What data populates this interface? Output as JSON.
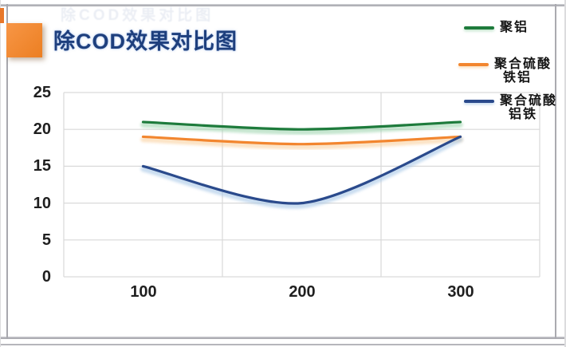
{
  "header": {
    "title": "除COD效果对比图",
    "ghost_text": "除COD效果对比图"
  },
  "accent_colors": {
    "orange_square": "#EC7F22",
    "title_blue": "#1E3F7D",
    "gridline": "#D9D9D9"
  },
  "chart_data": {
    "type": "line",
    "title": "除COD效果对比图",
    "categories": [
      100,
      200,
      300
    ],
    "series": [
      {
        "name": "聚铝",
        "values": [
          21,
          20,
          21
        ],
        "color": "#1E7B3C",
        "glow_color": "#9DD4AE"
      },
      {
        "name": "聚合硫酸铁铝",
        "values": [
          19,
          18,
          19
        ],
        "color": "#F2862F",
        "glow_color": "#F9CF9B"
      },
      {
        "name": "聚合硫酸铝铁",
        "values": [
          15,
          10,
          19
        ],
        "color": "#2A4A8C",
        "glow_color": "#A5C6E6"
      }
    ],
    "yticks": [
      0,
      5,
      10,
      15,
      20,
      25
    ],
    "ylim": [
      0,
      25
    ],
    "xlabel": "",
    "ylabel": "",
    "grid": true,
    "legend_position": "right",
    "legend": [
      {
        "lines": [
          "聚铝"
        ]
      },
      {
        "lines": [
          "聚合硫酸",
          "铁铝"
        ]
      },
      {
        "lines": [
          "聚合硫酸",
          "铝铁"
        ]
      }
    ]
  }
}
